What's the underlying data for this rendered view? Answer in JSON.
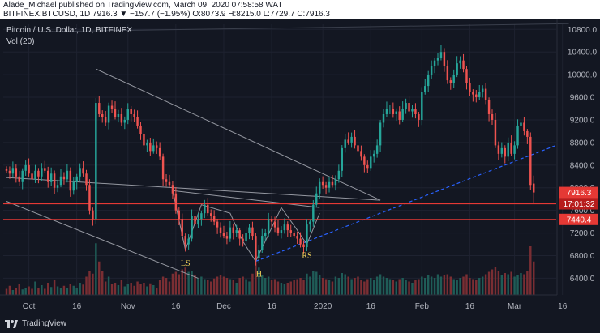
{
  "header": {
    "line1": "Alade_Michael published on TradingView.com, March 09, 2020 07:58:58 WAT",
    "line2": "BITFINEX:BTCUSD, 1D 7916.3 ▼ −157.7 (−1.95%) O:8073.9 H:8215.0 L:7729.7 C:7916.3"
  },
  "chart": {
    "legend_title": "Bitcoin / U.S. Dollar, 1D, BITFINEX",
    "legend_vol": "Vol (20)",
    "price_tag": "7916.3",
    "countdown_tag": "17:01:32",
    "support_tag": "7440.4",
    "annotations": {
      "ls": "LS",
      "h": "H",
      "rs": "RS"
    }
  },
  "footer": {
    "brand": "TradingView"
  },
  "colors": {
    "bg": "#131722",
    "up": "#26a69a",
    "down": "#ef5350",
    "level": "#e53935",
    "trend": "#9598a1",
    "blue_trend": "#2962ff",
    "label_yellow": "#f9d85a"
  },
  "chart_data": {
    "type": "candlestick",
    "symbol": "BITFINEX:BTCUSD",
    "timeframe": "1D",
    "y_ticks": [
      6400,
      6800,
      7200,
      7600,
      8000,
      8400,
      8800,
      9200,
      9600,
      10000,
      10400,
      10800
    ],
    "x_ticks": [
      {
        "label": "Oct",
        "date": "2019-10-01"
      },
      {
        "label": "16",
        "date": "2019-10-16"
      },
      {
        "label": "Nov",
        "date": "2019-11-01"
      },
      {
        "label": "16",
        "date": "2019-11-16"
      },
      {
        "label": "Dec",
        "date": "2019-12-01"
      },
      {
        "label": "16",
        "date": "2019-12-16"
      },
      {
        "label": "2020",
        "date": "2020-01-01"
      },
      {
        "label": "16",
        "date": "2020-01-16"
      },
      {
        "label": "Feb",
        "date": "2020-02-01"
      },
      {
        "label": "16",
        "date": "2020-02-16"
      },
      {
        "label": "Mar",
        "date": "2020-03-01"
      },
      {
        "label": "16",
        "date": "2020-03-16"
      }
    ],
    "horizontal_levels": [
      7716.0,
      7440.4
    ],
    "last_price": 7916.3,
    "ohlc_last": {
      "open": 8073.9,
      "high": 8215.0,
      "low": 7729.7,
      "close": 7916.3
    },
    "series": [
      {
        "name": "Bitcoin / U.S. Dollar",
        "closes": [
          8300,
          8250,
          8350,
          8200,
          8100,
          8300,
          8400,
          8250,
          8150,
          8300,
          8200,
          8350,
          8300,
          8100,
          8250,
          8000,
          8050,
          8200,
          8150,
          8300,
          7950,
          8100,
          8200,
          8350,
          8250,
          8050,
          7600,
          7450,
          9500,
          9300,
          9250,
          9150,
          9450,
          9400,
          9250,
          9300,
          9150,
          9200,
          9400,
          9300,
          9250,
          9100,
          8950,
          8750,
          8800,
          8650,
          8750,
          8700,
          8550,
          8150,
          8100,
          8050,
          7900,
          7600,
          7450,
          7150,
          7000,
          7100,
          7500,
          7350,
          7450,
          7550,
          7700,
          7550,
          7500,
          7400,
          7300,
          7200,
          7150,
          7100,
          7300,
          7200,
          7250,
          7100,
          7050,
          7200,
          7300,
          7150,
          6750,
          6900,
          7150,
          7200,
          7450,
          7400,
          7300,
          7200,
          7250,
          7350,
          7250,
          7200,
          7150,
          7100,
          7000,
          6950,
          7350,
          7400,
          7700,
          7900,
          8100,
          8050,
          8000,
          8100,
          8050,
          8150,
          8300,
          8700,
          8850,
          8800,
          8900,
          8750,
          8650,
          8550,
          8400,
          8350,
          8550,
          8600,
          8750,
          9150,
          9300,
          9400,
          9400,
          9300,
          9350,
          9200,
          9400,
          9500,
          9350,
          9400,
          9300,
          9200,
          9700,
          9800,
          10000,
          10150,
          10250,
          10300,
          10400,
          10150,
          9900,
          9850,
          10000,
          10200,
          10250,
          10100,
          9850,
          9700,
          9650,
          9600,
          9700,
          9750,
          9550,
          9300,
          9200,
          8750,
          8600,
          8700,
          8550,
          8800,
          8600,
          8750,
          9100,
          9150,
          9000,
          8900,
          8050,
          7916.3
        ]
      }
    ],
    "volume_relative": [
      0.1,
      0.15,
      0.08,
      0.12,
      0.18,
      0.09,
      0.11,
      0.14,
      0.1,
      0.22,
      0.12,
      0.16,
      0.1,
      0.2,
      0.13,
      0.25,
      0.14,
      0.12,
      0.15,
      0.11,
      0.18,
      0.15,
      0.12,
      0.2,
      0.17,
      0.3,
      0.4,
      0.35,
      0.85,
      0.55,
      0.4,
      0.22,
      0.3,
      0.18,
      0.2,
      0.16,
      0.25,
      0.14,
      0.18,
      0.2,
      0.15,
      0.22,
      0.18,
      0.2,
      0.14,
      0.19,
      0.16,
      0.12,
      0.24,
      0.3,
      0.28,
      0.22,
      0.35,
      0.38,
      0.34,
      0.42,
      0.45,
      0.38,
      0.4,
      0.33,
      0.28,
      0.3,
      0.26,
      0.25,
      0.22,
      0.27,
      0.3,
      0.33,
      0.3,
      0.28,
      0.26,
      0.24,
      0.2,
      0.28,
      0.3,
      0.26,
      0.22,
      0.35,
      0.75,
      0.45,
      0.32,
      0.28,
      0.3,
      0.24,
      0.26,
      0.22,
      0.2,
      0.18,
      0.2,
      0.22,
      0.25,
      0.26,
      0.28,
      0.24,
      0.35,
      0.3,
      0.4,
      0.38,
      0.32,
      0.28,
      0.26,
      0.24,
      0.22,
      0.3,
      0.28,
      0.36,
      0.34,
      0.3,
      0.26,
      0.28,
      0.3,
      0.24,
      0.22,
      0.26,
      0.28,
      0.24,
      0.3,
      0.34,
      0.3,
      0.28,
      0.26,
      0.24,
      0.22,
      0.26,
      0.28,
      0.24,
      0.22,
      0.2,
      0.24,
      0.26,
      0.3,
      0.28,
      0.32,
      0.3,
      0.28,
      0.34,
      0.3,
      0.32,
      0.34,
      0.3,
      0.26,
      0.24,
      0.28,
      0.3,
      0.34,
      0.28,
      0.26,
      0.24,
      0.28,
      0.3,
      0.34,
      0.38,
      0.42,
      0.46,
      0.4,
      0.32,
      0.36,
      0.34,
      0.38,
      0.3,
      0.32,
      0.36,
      0.34,
      0.4,
      0.8,
      0.55
    ]
  }
}
